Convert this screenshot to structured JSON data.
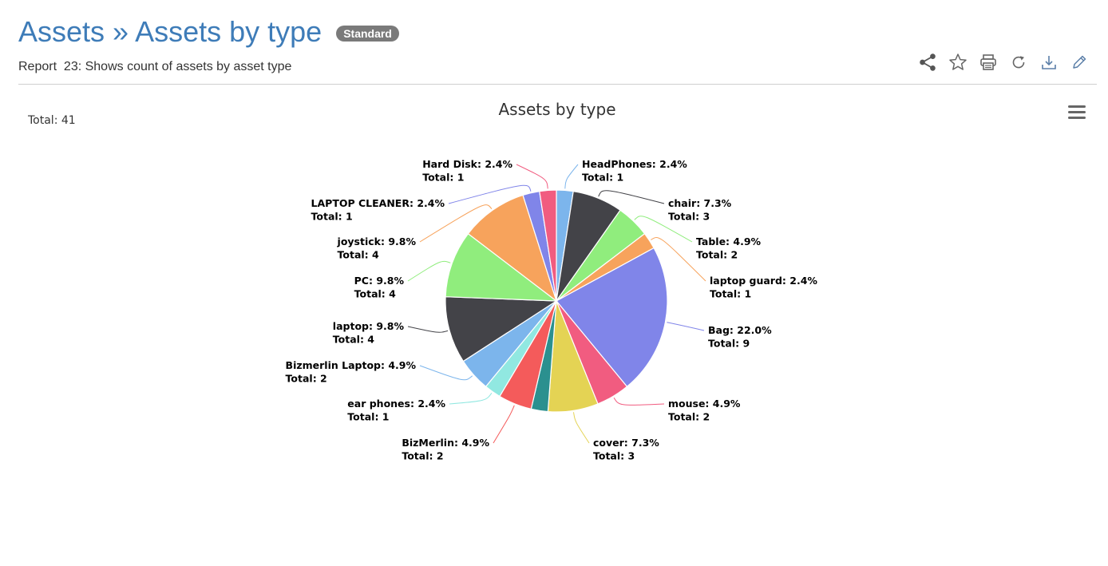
{
  "header": {
    "title": "Assets » Assets by type",
    "badge": "Standard",
    "subtitle": "Report  23: Shows count of assets by asset type"
  },
  "toolbar": {
    "icons": [
      "share-icon",
      "star-icon",
      "print-icon",
      "refresh-icon",
      "download-icon",
      "edit-icon"
    ]
  },
  "summary": {
    "total_label": "Total: 41"
  },
  "chart_data": {
    "type": "pie",
    "title": "Assets by type",
    "total": 41,
    "slices": [
      {
        "name": "HeadPhones",
        "value": 1,
        "percent": "2.4%",
        "color": "#7cb5ec"
      },
      {
        "name": "chair",
        "value": 3,
        "percent": "7.3%",
        "color": "#434348"
      },
      {
        "name": "Table",
        "value": 2,
        "percent": "4.9%",
        "color": "#90ed7d"
      },
      {
        "name": "laptop guard",
        "value": 1,
        "percent": "2.4%",
        "color": "#f7a35c"
      },
      {
        "name": "Bag",
        "value": 9,
        "percent": "22.0%",
        "color": "#8085e9"
      },
      {
        "name": "mouse",
        "value": 2,
        "percent": "4.9%",
        "color": "#f15c80"
      },
      {
        "name": "cover",
        "value": 3,
        "percent": "7.3%",
        "color": "#e4d354"
      },
      {
        "name": "",
        "value": 1,
        "percent": "",
        "color": "#2b908f"
      },
      {
        "name": "BizMerlin",
        "value": 2,
        "percent": "4.9%",
        "color": "#f45b5b"
      },
      {
        "name": "ear phones",
        "value": 1,
        "percent": "2.4%",
        "color": "#91e8e1"
      },
      {
        "name": "Bizmerlin Laptop",
        "value": 2,
        "percent": "4.9%",
        "color": "#7cb5ec"
      },
      {
        "name": "laptop",
        "value": 4,
        "percent": "9.8%",
        "color": "#434348"
      },
      {
        "name": "PC",
        "value": 4,
        "percent": "9.8%",
        "color": "#90ed7d"
      },
      {
        "name": "joystick",
        "value": 4,
        "percent": "9.8%",
        "color": "#f7a35c"
      },
      {
        "name": "LAPTOP CLEANER",
        "value": 1,
        "percent": "2.4%",
        "color": "#8085e9"
      },
      {
        "name": "Hard Disk",
        "value": 1,
        "percent": "2.4%",
        "color": "#f15c80"
      }
    ]
  }
}
